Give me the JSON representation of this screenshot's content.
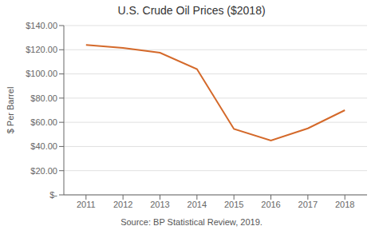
{
  "chart_data": {
    "type": "line",
    "title": "U.S. Crude Oil Prices ($2018)",
    "x": [
      2011,
      2012,
      2013,
      2014,
      2015,
      2016,
      2017,
      2018
    ],
    "values": [
      124.0,
      121.5,
      117.5,
      104.0,
      54.5,
      45.0,
      55.0,
      70.0
    ],
    "color": "#D4692A",
    "ylabel": "$ Per Barrel",
    "annotations": [
      "Source: BP Statistical Review, 2019."
    ],
    "xlim": [
      2010.4,
      2018.6
    ],
    "xticks": [
      2011,
      2012,
      2013,
      2014,
      2015,
      2016,
      2017,
      2018
    ],
    "ylim": [
      0,
      140
    ],
    "yticks": [
      {
        "value": 0,
        "label": "$-"
      },
      {
        "value": 20,
        "label": "$20.00"
      },
      {
        "value": 40,
        "label": "$40.00"
      },
      {
        "value": 60,
        "label": "$60.00"
      },
      {
        "value": 80,
        "label": "$80.00"
      },
      {
        "value": 100,
        "label": "$100.00"
      },
      {
        "value": 120,
        "label": "$120.00"
      },
      {
        "value": 140,
        "label": "$140.00"
      }
    ],
    "grid": "y"
  }
}
